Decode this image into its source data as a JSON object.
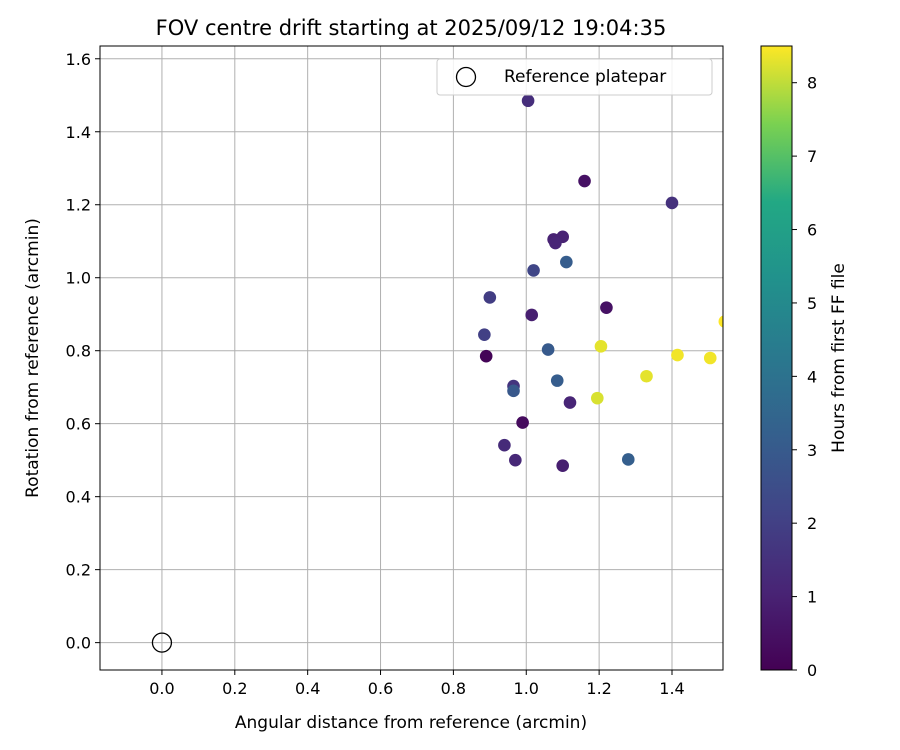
{
  "chart_data": {
    "type": "scatter",
    "title": "FOV centre drift starting at 2025/09/12 19:04:35",
    "xlabel": "Angular distance from reference (arcmin)",
    "ylabel": "Rotation from reference (arcmin)",
    "xlim": [
      -0.17,
      1.54
    ],
    "ylim": [
      -0.075,
      1.635
    ],
    "xticks": [
      0.0,
      0.2,
      0.4,
      0.6,
      0.8,
      1.0,
      1.2,
      1.4
    ],
    "xtick_labels": [
      "0.0",
      "0.2",
      "0.4",
      "0.6",
      "0.8",
      "1.0",
      "1.2",
      "1.4"
    ],
    "yticks": [
      0.0,
      0.2,
      0.4,
      0.6,
      0.8,
      1.0,
      1.2,
      1.4,
      1.6
    ],
    "ytick_labels": [
      "0.0",
      "0.2",
      "0.4",
      "0.6",
      "0.8",
      "1.0",
      "1.2",
      "1.4",
      "1.6"
    ],
    "grid": true,
    "legend": {
      "placement": "top-right",
      "entries": [
        "Reference platepar"
      ]
    },
    "colorbar": {
      "label": "Hours from first FF file",
      "min": 0,
      "max": 8.5,
      "ticks": [
        0,
        1,
        2,
        3,
        4,
        5,
        6,
        7,
        8
      ],
      "tick_labels": [
        "0",
        "1",
        "2",
        "3",
        "4",
        "5",
        "6",
        "7",
        "8"
      ],
      "colormap": "viridis"
    },
    "reference": {
      "name": "Reference platepar",
      "x": 0.0,
      "y": 0.0
    },
    "points": [
      {
        "x": 0.89,
        "y": 0.785,
        "hours": 0.1
      },
      {
        "x": 0.99,
        "y": 0.603,
        "hours": 0.3
      },
      {
        "x": 1.16,
        "y": 1.265,
        "hours": 0.5
      },
      {
        "x": 1.22,
        "y": 0.918,
        "hours": 0.5
      },
      {
        "x": 1.1,
        "y": 0.485,
        "hours": 0.9
      },
      {
        "x": 1.015,
        "y": 0.898,
        "hours": 0.9
      },
      {
        "x": 1.075,
        "y": 1.105,
        "hours": 1.0
      },
      {
        "x": 1.1,
        "y": 1.112,
        "hours": 1.0
      },
      {
        "x": 1.08,
        "y": 1.095,
        "hours": 1.1
      },
      {
        "x": 1.12,
        "y": 0.658,
        "hours": 1.1
      },
      {
        "x": 0.97,
        "y": 0.5,
        "hours": 1.2
      },
      {
        "x": 0.94,
        "y": 0.541,
        "hours": 1.3
      },
      {
        "x": 1.005,
        "y": 1.485,
        "hours": 1.4
      },
      {
        "x": 1.4,
        "y": 1.205,
        "hours": 1.5
      },
      {
        "x": 0.965,
        "y": 0.703,
        "hours": 1.6
      },
      {
        "x": 0.9,
        "y": 0.946,
        "hours": 1.9
      },
      {
        "x": 0.885,
        "y": 0.844,
        "hours": 2.0
      },
      {
        "x": 1.02,
        "y": 1.02,
        "hours": 2.2
      },
      {
        "x": 0.965,
        "y": 0.69,
        "hours": 2.9
      },
      {
        "x": 1.06,
        "y": 0.803,
        "hours": 3.0
      },
      {
        "x": 1.11,
        "y": 1.043,
        "hours": 3.1
      },
      {
        "x": 1.085,
        "y": 0.718,
        "hours": 3.1
      },
      {
        "x": 1.28,
        "y": 0.502,
        "hours": 3.2
      },
      {
        "x": 1.195,
        "y": 0.67,
        "hours": 8.2
      },
      {
        "x": 1.205,
        "y": 0.812,
        "hours": 8.3
      },
      {
        "x": 1.33,
        "y": 0.73,
        "hours": 8.3
      },
      {
        "x": 1.415,
        "y": 0.788,
        "hours": 8.4
      },
      {
        "x": 1.505,
        "y": 0.78,
        "hours": 8.4
      },
      {
        "x": 1.545,
        "y": 0.88,
        "hours": 8.5
      }
    ]
  }
}
